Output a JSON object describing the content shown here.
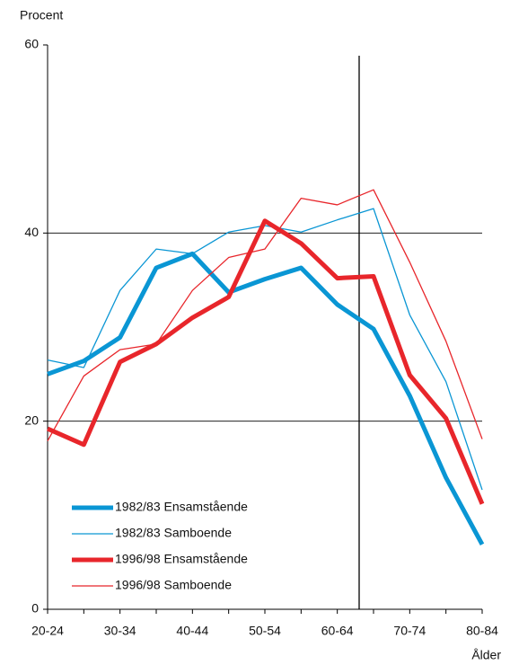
{
  "chart_data": {
    "type": "line",
    "y_label": "Procent",
    "x_label": "Ålder",
    "categories": [
      "20-24",
      null,
      "30-34",
      null,
      "40-44",
      null,
      "50-54",
      null,
      "60-64",
      null,
      "70-74",
      null,
      "80-84"
    ],
    "series": [
      {
        "name": "1982/83 Ensamstående",
        "color": "#0a96d4",
        "width": 5,
        "values": [
          25,
          26.4,
          28.9,
          36.3,
          37.8,
          33.7,
          35.1,
          36.3,
          32.4,
          29.8,
          22.7,
          14,
          6.9
        ]
      },
      {
        "name": "1982/83 Samboende",
        "color": "#0a96d4",
        "width": 1.3,
        "values": [
          26.5,
          25.7,
          33.9,
          38.3,
          37.8,
          40.1,
          40.8,
          40.1,
          41.4,
          42.6,
          31.3,
          24.2,
          12.7
        ]
      },
      {
        "name": "1996/98 Ensamstående",
        "color": "#e8262b",
        "width": 5,
        "values": [
          19.2,
          17.5,
          26.3,
          28.2,
          31,
          33.2,
          41.3,
          38.9,
          35.2,
          35.4,
          24.9,
          20.3,
          11.2
        ]
      },
      {
        "name": "1996/98 Samboende",
        "color": "#e8262b",
        "width": 1.3,
        "values": [
          17.9,
          24.8,
          27.6,
          28.2,
          33.9,
          37.4,
          38.3,
          43.7,
          43,
          44.6,
          36.9,
          28.5,
          18.1
        ]
      }
    ],
    "ylim": [
      0,
      60
    ],
    "yticks": [
      0,
      20,
      40,
      60
    ],
    "grid": true,
    "legend": "lower left"
  }
}
